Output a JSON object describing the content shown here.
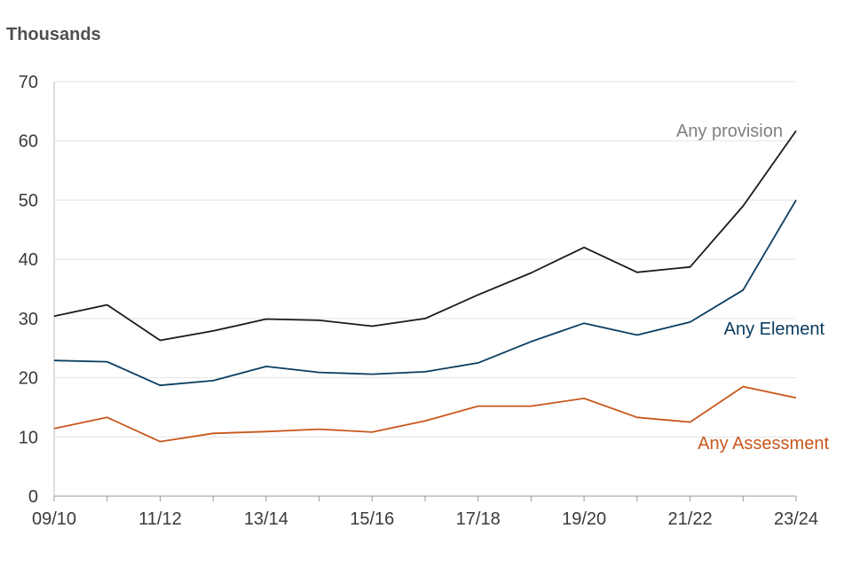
{
  "chart_data": {
    "type": "line",
    "ylabel": "Thousands",
    "ylim": [
      0,
      70
    ],
    "yticks": [
      0,
      10,
      20,
      30,
      40,
      50,
      60,
      70
    ],
    "categories": [
      "09/10",
      "10/11",
      "11/12",
      "12/13",
      "13/14",
      "14/15",
      "15/16",
      "16/17",
      "17/18",
      "18/19",
      "19/20",
      "20/21",
      "21/22",
      "22/23",
      "23/24"
    ],
    "xtick_labels": [
      "09/10",
      "",
      "11/12",
      "",
      "13/14",
      "",
      "15/16",
      "",
      "17/18",
      "",
      "19/20",
      "",
      "21/22",
      "",
      "23/24"
    ],
    "grid": "horizontal",
    "series": [
      {
        "name": "Any provision",
        "color": "#1a1a1a",
        "label_color": "#7f7f7f",
        "values": [
          30.4,
          32.3,
          26.3,
          27.9,
          29.9,
          29.7,
          28.7,
          30.0,
          34.0,
          37.7,
          42.0,
          37.8,
          38.7,
          49.0,
          61.7
        ]
      },
      {
        "name": "Any Element",
        "color": "#0b3d60",
        "label_color": "#0b3d60",
        "values": [
          22.9,
          22.7,
          18.7,
          19.5,
          21.9,
          20.9,
          20.6,
          21.0,
          22.5,
          26.1,
          29.2,
          27.2,
          29.4,
          34.8,
          50.0
        ]
      },
      {
        "name": "Any Assessment",
        "color": "#c8571c",
        "label_color": "#c8571c",
        "values": [
          11.4,
          13.3,
          9.2,
          10.6,
          10.9,
          11.3,
          10.8,
          12.7,
          15.2,
          15.2,
          16.5,
          13.3,
          12.5,
          18.5,
          16.6
        ]
      }
    ]
  }
}
